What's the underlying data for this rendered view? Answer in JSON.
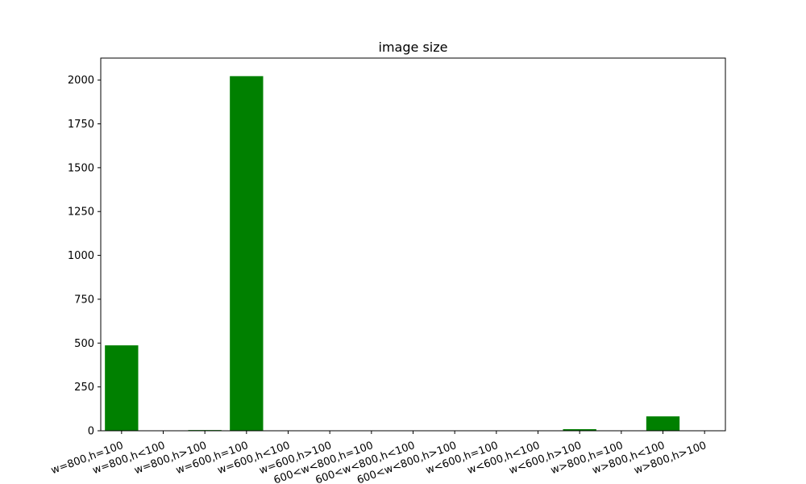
{
  "chart_data": {
    "type": "bar",
    "title": "image size",
    "xlabel": "",
    "ylabel": "",
    "categories": [
      "w=800,h=100",
      "w=800,h<100",
      "w=800,h>100",
      "w=600,h=100",
      "w=600,h<100",
      "w=600,h>100",
      "600<w<800,h=100",
      "600<w<800,h<100",
      "600<w<800,h>100",
      "w<600,h=100",
      "w<600,h<100",
      "w<600,h>100",
      "w>800,h=100",
      "w>800,h<100",
      "w>800,h>100"
    ],
    "values": [
      487,
      0,
      4,
      2022,
      0,
      0,
      0,
      0,
      0,
      0,
      0,
      9,
      0,
      82,
      0
    ],
    "ylim": [
      0,
      2125
    ],
    "yticks": [
      0,
      250,
      500,
      750,
      1000,
      1250,
      1500,
      1750,
      2000
    ],
    "tick_rotation_deg": -20,
    "grid": false,
    "legend": false,
    "colors": {
      "bar": "#008000",
      "axis": "#000000",
      "background": "#ffffff"
    }
  }
}
